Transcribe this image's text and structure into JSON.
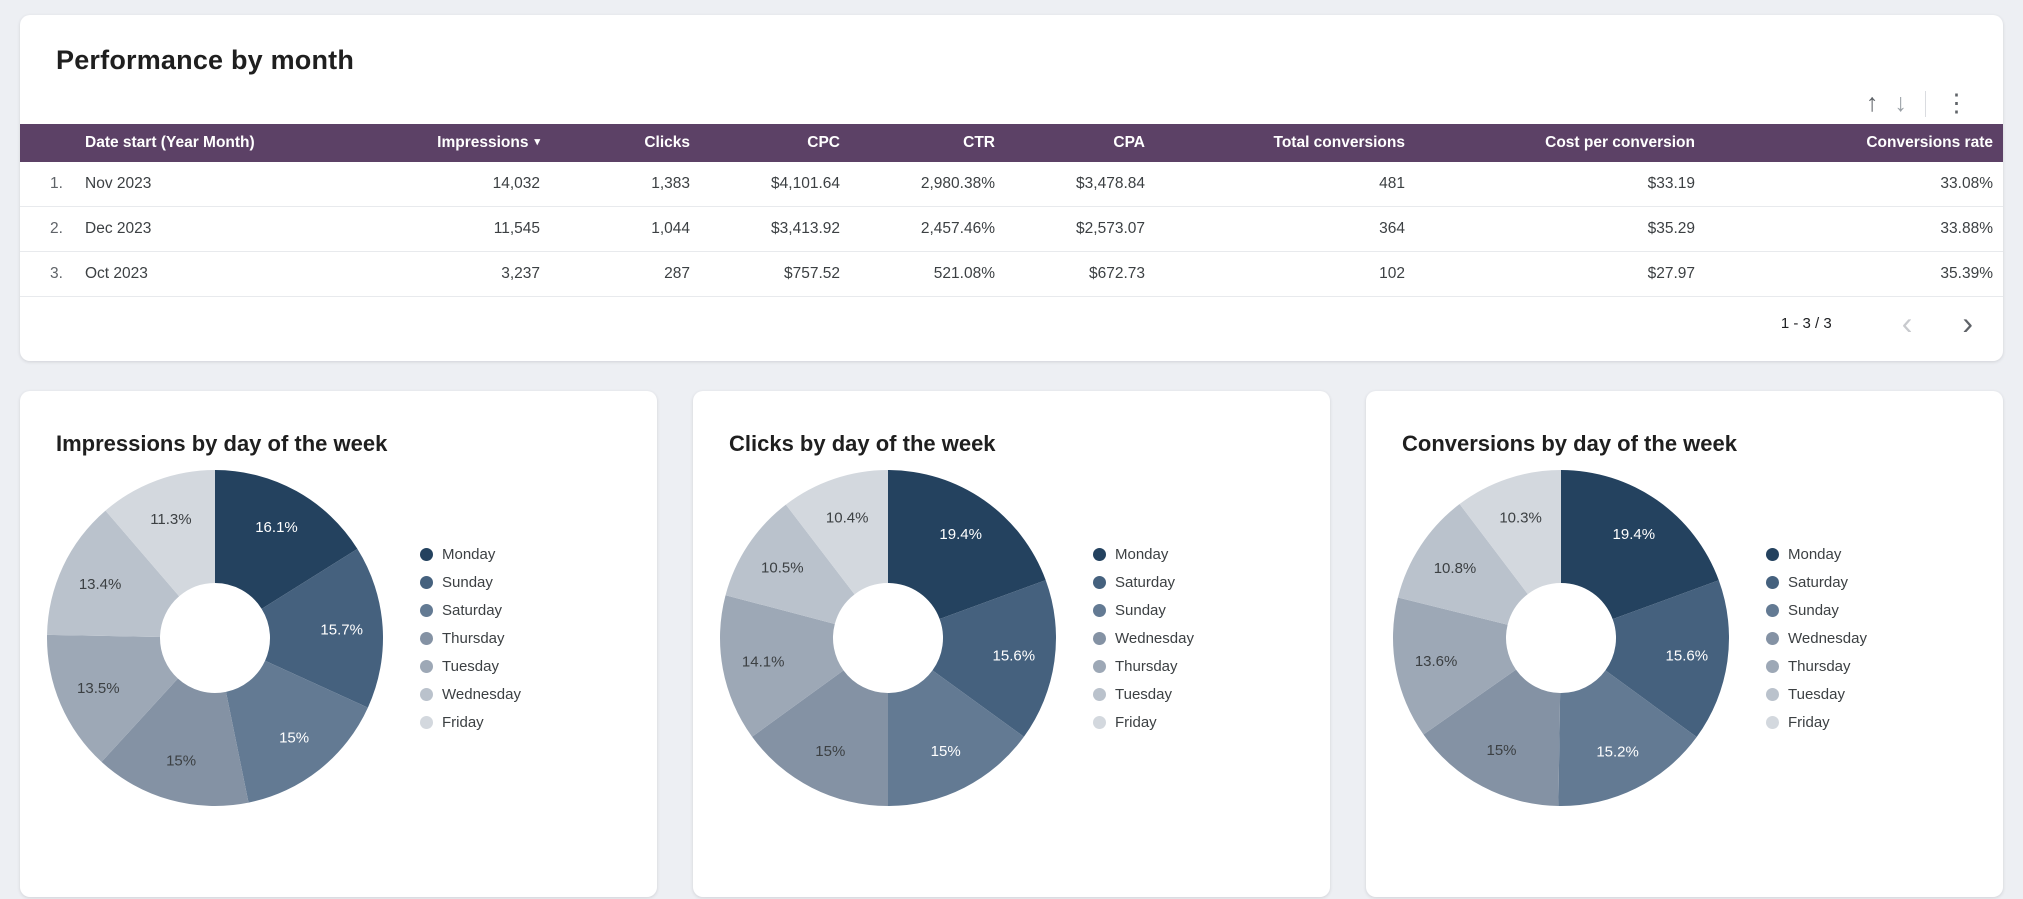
{
  "theme": {
    "page_bg": "#edeff3",
    "card_bg": "#ffffff",
    "table_header_bg": "#5c4166",
    "table_header_text": "#ffffff",
    "pie_palette": [
      "#24425f",
      "#45617e",
      "#637a93",
      "#8492a4",
      "#9da8b6",
      "#bac2cc",
      "#d3d8de"
    ]
  },
  "ui": {
    "move_up": "↑",
    "move_down": "↓",
    "more_menu": "⋮",
    "prev": "‹",
    "next": "›"
  },
  "chart_data": [
    {
      "type": "table",
      "title": "Performance by month",
      "columns": [
        "Date start (Year Month)",
        "Impressions",
        "Clicks",
        "CPC",
        "CTR",
        "CPA",
        "Total conversions",
        "Cost per conversion",
        "Conversions rate"
      ],
      "sort": {
        "column": "Impressions",
        "direction": "desc"
      },
      "sort_indicator": "▾",
      "row_numbers": [
        "1.",
        "2.",
        "3."
      ],
      "rows": [
        [
          "Nov 2023",
          "14,032",
          "1,383",
          "$4,101.64",
          "2,980.38%",
          "$3,478.84",
          "481",
          "$33.19",
          "33.08%"
        ],
        [
          "Dec 2023",
          "11,545",
          "1,044",
          "$3,413.92",
          "2,457.46%",
          "$2,573.07",
          "364",
          "$35.29",
          "33.88%"
        ],
        [
          "Oct 2023",
          "3,237",
          "287",
          "$757.52",
          "521.08%",
          "$672.73",
          "102",
          "$27.97",
          "35.39%"
        ]
      ],
      "pagination": "1 - 3 / 3"
    },
    {
      "type": "pie",
      "donut": true,
      "title": "Impressions by day of the week",
      "categories": [
        "Monday",
        "Sunday",
        "Saturday",
        "Thursday",
        "Tuesday",
        "Wednesday",
        "Friday"
      ],
      "values": [
        16.1,
        15.7,
        15,
        15,
        13.5,
        13.4,
        11.3
      ],
      "unit": "%",
      "legend_position": "right"
    },
    {
      "type": "pie",
      "donut": true,
      "title": "Clicks by day of the week",
      "categories": [
        "Monday",
        "Saturday",
        "Sunday",
        "Wednesday",
        "Thursday",
        "Tuesday",
        "Friday"
      ],
      "values": [
        19.4,
        15.6,
        15,
        15,
        14.1,
        10.5,
        10.4
      ],
      "unit": "%",
      "legend_position": "right"
    },
    {
      "type": "pie",
      "donut": true,
      "title": "Conversions by day of the week",
      "categories": [
        "Monday",
        "Saturday",
        "Sunday",
        "Wednesday",
        "Thursday",
        "Tuesday",
        "Friday"
      ],
      "values": [
        19.4,
        15.6,
        15.2,
        15,
        13.6,
        10.8,
        10.3
      ],
      "unit": "%",
      "legend_position": "right"
    }
  ]
}
